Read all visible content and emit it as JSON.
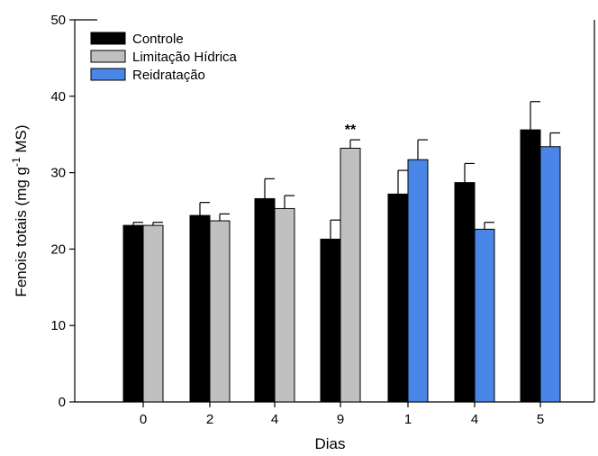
{
  "chart_data": {
    "type": "bar",
    "categories": [
      "0",
      "2",
      "4",
      "9",
      "1",
      "4",
      "5"
    ],
    "xlabel": "Dias",
    "ylabel_parts": [
      "Fenois totais (mg g",
      "-1",
      " MS)"
    ],
    "ylim": [
      0,
      50
    ],
    "yticks": [
      0,
      10,
      20,
      30,
      40,
      50
    ],
    "legend_position": "top-left",
    "series": [
      {
        "name": "Controle",
        "color": "#000000",
        "values": [
          23.1,
          24.4,
          26.6,
          21.3,
          27.2,
          28.7,
          35.6
        ],
        "errors": [
          0.4,
          1.7,
          2.6,
          2.5,
          3.1,
          2.5,
          3.7
        ]
      },
      {
        "name": "Limitação Hídrica",
        "color": "#c0c0c0",
        "values": [
          23.1,
          23.7,
          25.3,
          33.2,
          null,
          null,
          null
        ],
        "errors": [
          0.4,
          0.9,
          1.7,
          1.1,
          null,
          null,
          null
        ]
      },
      {
        "name": "Reidratação",
        "color": "#4a86e8",
        "values": [
          null,
          null,
          null,
          null,
          31.7,
          22.6,
          33.4
        ],
        "errors": [
          null,
          null,
          null,
          null,
          2.6,
          0.9,
          1.8
        ]
      }
    ],
    "annotations": [
      {
        "text": "**",
        "category_index": 3,
        "series": "Limitação Hídrica"
      }
    ]
  }
}
